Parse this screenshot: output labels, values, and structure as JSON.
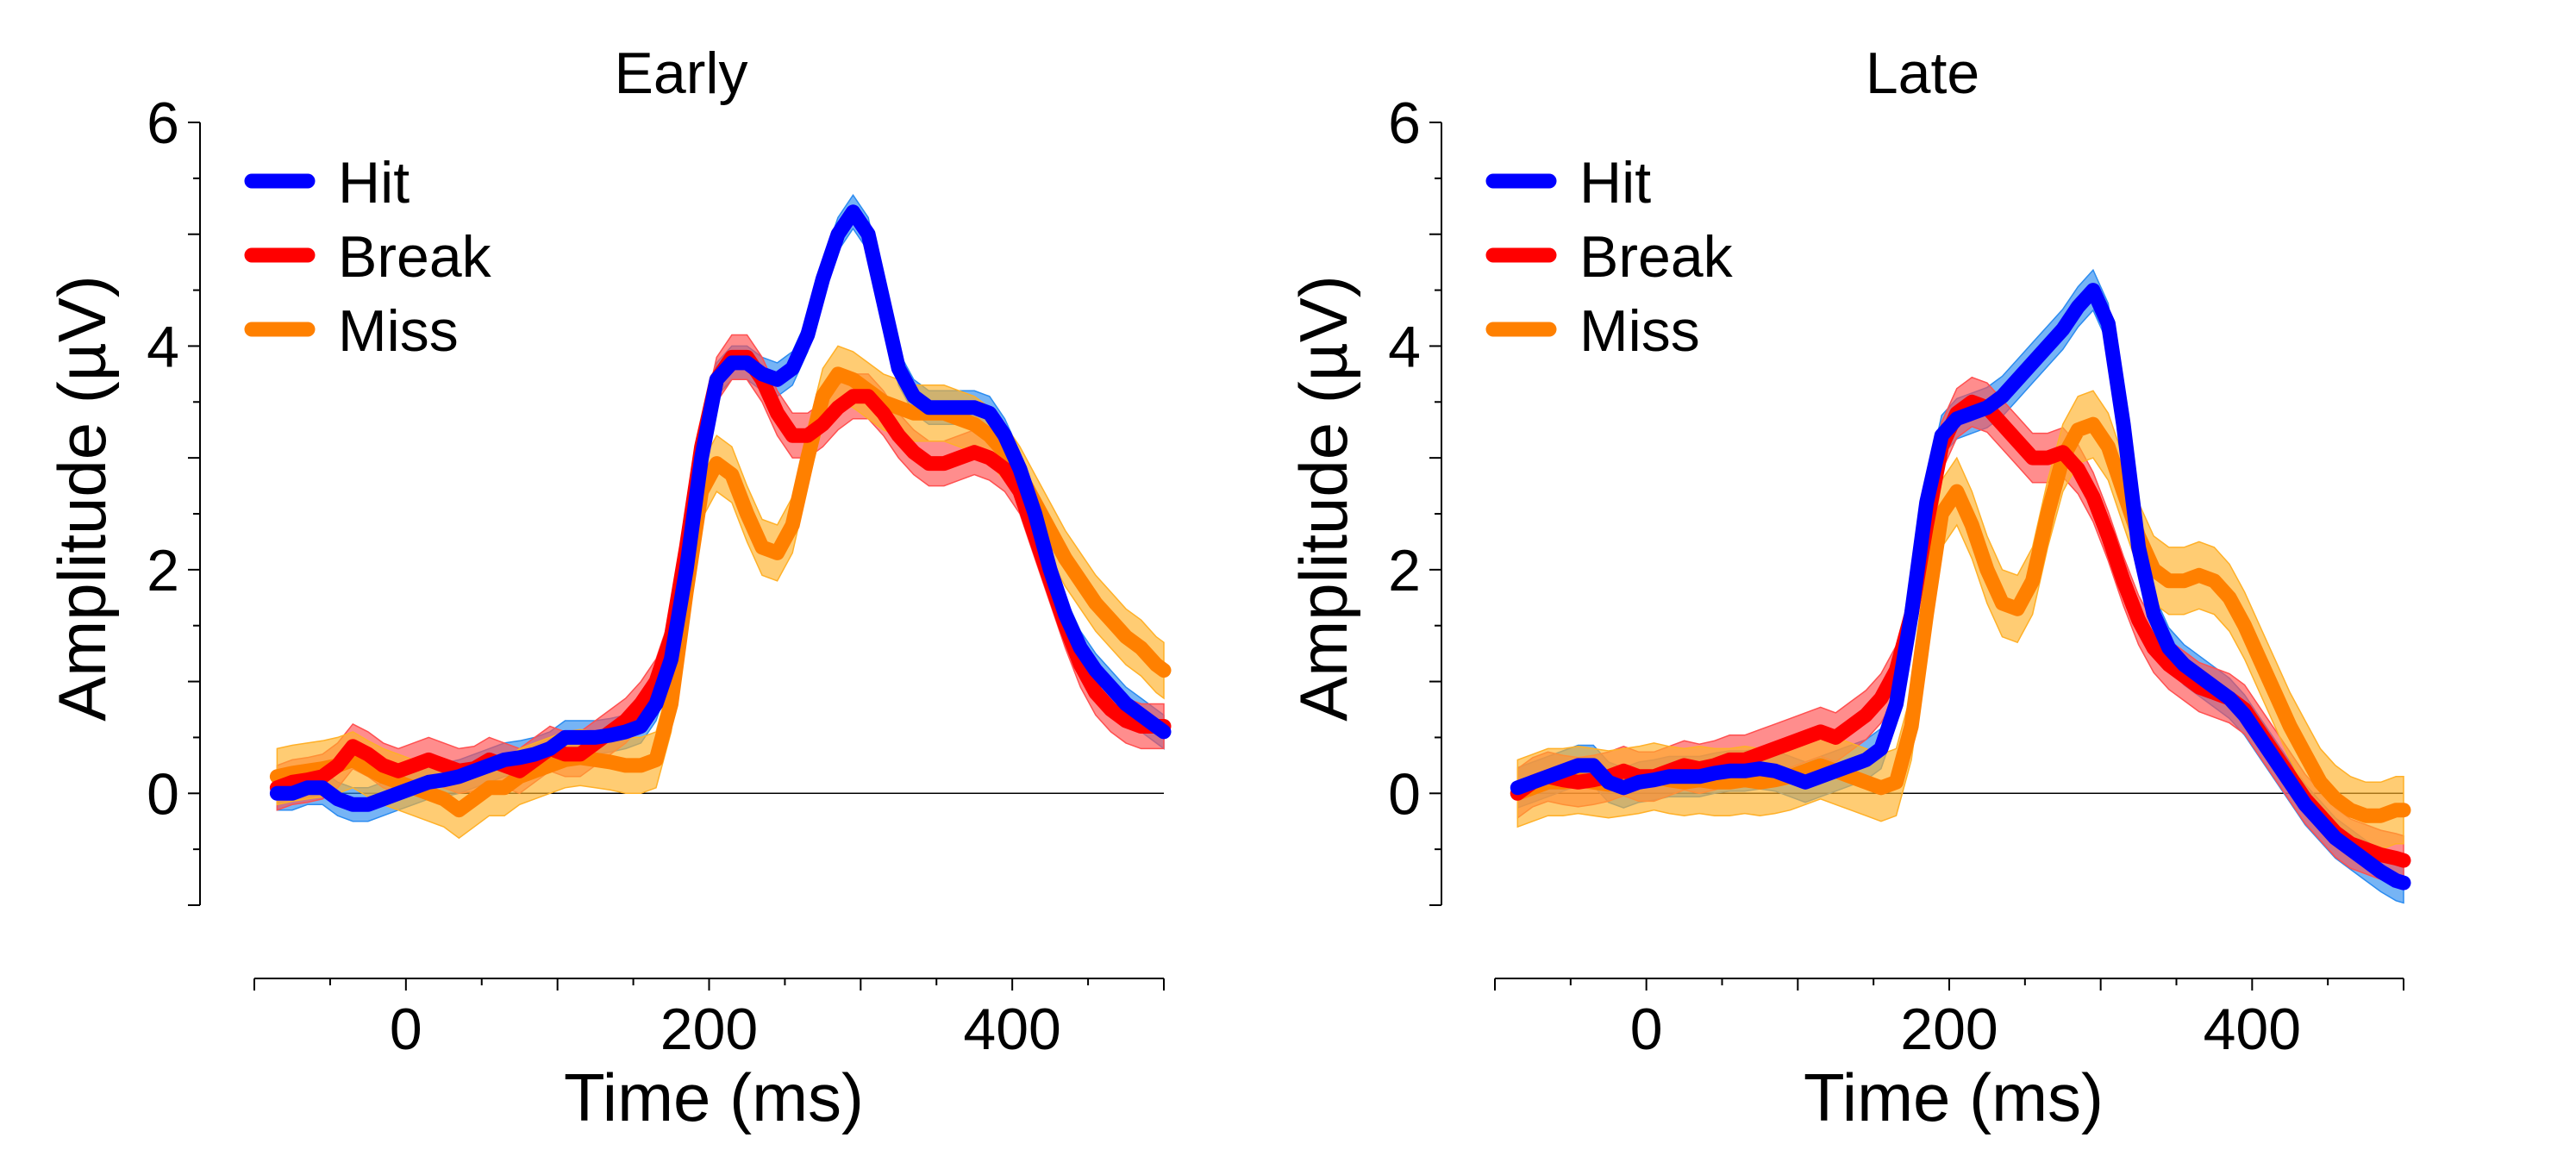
{
  "chart_data": [
    {
      "type": "line",
      "title": "Early",
      "xlabel": "Time (ms)",
      "ylabel": "Amplitude (µV)",
      "xlim": [
        -100,
        500
      ],
      "ylim": [
        -1,
        6
      ],
      "xticks": [
        0,
        200,
        400
      ],
      "xtick_labels": [
        "0",
        "200",
        "400"
      ],
      "yticks": [
        0,
        2,
        4,
        6
      ],
      "ytick_labels": [
        "0",
        "2",
        "4",
        "6"
      ],
      "zero_line": true,
      "shaded_error_bands": true,
      "legend": "top-left",
      "series": [
        {
          "name": "Hit",
          "color": "#0000ff",
          "band_color": "#2c8cf0",
          "x": [
            -85,
            -75,
            -65,
            -55,
            -45,
            -35,
            -25,
            -15,
            -5,
            5,
            15,
            25,
            35,
            45,
            55,
            65,
            75,
            85,
            95,
            105,
            115,
            125,
            135,
            145,
            155,
            165,
            175,
            185,
            195,
            205,
            215,
            225,
            235,
            245,
            255,
            265,
            275,
            285,
            295,
            305,
            315,
            325,
            335,
            345,
            355,
            365,
            375,
            385,
            395,
            405,
            415,
            425,
            435,
            445,
            455,
            465,
            475,
            485,
            495,
            500
          ],
          "y": [
            0.0,
            0.0,
            0.05,
            0.05,
            -0.05,
            -0.1,
            -0.1,
            -0.05,
            0.0,
            0.05,
            0.1,
            0.12,
            0.15,
            0.2,
            0.25,
            0.3,
            0.32,
            0.35,
            0.4,
            0.5,
            0.5,
            0.5,
            0.52,
            0.55,
            0.6,
            0.8,
            1.2,
            2.0,
            3.0,
            3.7,
            3.85,
            3.85,
            3.75,
            3.7,
            3.8,
            4.1,
            4.6,
            5.0,
            5.2,
            5.0,
            4.4,
            3.8,
            3.55,
            3.45,
            3.45,
            3.45,
            3.45,
            3.4,
            3.2,
            2.9,
            2.5,
            2.0,
            1.6,
            1.3,
            1.1,
            0.95,
            0.8,
            0.7,
            0.6,
            0.55
          ],
          "error": 0.15
        },
        {
          "name": "Break",
          "color": "#ff0000",
          "band_color": "#ff5050",
          "x": [
            -85,
            -75,
            -65,
            -55,
            -45,
            -35,
            -25,
            -15,
            -5,
            5,
            15,
            25,
            35,
            45,
            55,
            65,
            75,
            85,
            95,
            105,
            115,
            125,
            135,
            145,
            155,
            165,
            175,
            185,
            195,
            205,
            215,
            225,
            235,
            245,
            255,
            265,
            275,
            285,
            295,
            305,
            315,
            325,
            335,
            345,
            355,
            365,
            375,
            385,
            395,
            405,
            415,
            425,
            435,
            445,
            455,
            465,
            475,
            485,
            495,
            500
          ],
          "y": [
            0.05,
            0.1,
            0.12,
            0.15,
            0.25,
            0.42,
            0.35,
            0.25,
            0.2,
            0.25,
            0.3,
            0.25,
            0.2,
            0.22,
            0.3,
            0.25,
            0.2,
            0.3,
            0.4,
            0.35,
            0.35,
            0.45,
            0.55,
            0.65,
            0.8,
            1.0,
            1.4,
            2.2,
            3.1,
            3.7,
            3.9,
            3.9,
            3.7,
            3.4,
            3.2,
            3.2,
            3.3,
            3.45,
            3.55,
            3.55,
            3.4,
            3.2,
            3.05,
            2.95,
            2.95,
            3.0,
            3.05,
            3.0,
            2.9,
            2.7,
            2.3,
            1.9,
            1.5,
            1.15,
            0.9,
            0.75,
            0.65,
            0.6,
            0.6,
            0.6
          ],
          "error": 0.2
        },
        {
          "name": "Miss",
          "color": "#ff8000",
          "band_color": "#ffb028",
          "x": [
            -85,
            -75,
            -65,
            -55,
            -45,
            -35,
            -25,
            -15,
            -5,
            5,
            15,
            25,
            35,
            45,
            55,
            65,
            75,
            85,
            95,
            105,
            115,
            125,
            135,
            145,
            155,
            165,
            175,
            185,
            195,
            205,
            215,
            225,
            235,
            245,
            255,
            265,
            275,
            285,
            295,
            305,
            315,
            325,
            335,
            345,
            355,
            365,
            375,
            385,
            395,
            405,
            415,
            425,
            435,
            445,
            455,
            465,
            475,
            485,
            495,
            500
          ],
          "y": [
            0.15,
            0.18,
            0.2,
            0.22,
            0.25,
            0.3,
            0.22,
            0.15,
            0.1,
            0.05,
            0.0,
            -0.05,
            -0.15,
            -0.05,
            0.05,
            0.05,
            0.15,
            0.2,
            0.25,
            0.3,
            0.32,
            0.3,
            0.28,
            0.25,
            0.25,
            0.3,
            0.8,
            1.8,
            2.7,
            2.95,
            2.85,
            2.5,
            2.2,
            2.15,
            2.4,
            3.0,
            3.55,
            3.75,
            3.7,
            3.6,
            3.5,
            3.45,
            3.4,
            3.4,
            3.4,
            3.35,
            3.3,
            3.2,
            3.05,
            2.85,
            2.6,
            2.35,
            2.1,
            1.9,
            1.7,
            1.55,
            1.4,
            1.3,
            1.15,
            1.1
          ],
          "error": 0.25
        }
      ]
    },
    {
      "type": "line",
      "title": "Late",
      "xlabel": "Time (ms)",
      "ylabel": "Amplitude (µV)",
      "xlim": [
        -100,
        500
      ],
      "ylim": [
        -1,
        6
      ],
      "xticks": [
        0,
        200,
        400
      ],
      "xtick_labels": [
        "0",
        "200",
        "400"
      ],
      "yticks": [
        0,
        2,
        4,
        6
      ],
      "ytick_labels": [
        "0",
        "2",
        "4",
        "6"
      ],
      "zero_line": true,
      "shaded_error_bands": true,
      "legend": "top-left",
      "series": [
        {
          "name": "Hit",
          "color": "#0000ff",
          "band_color": "#2c8cf0",
          "x": [
            -85,
            -75,
            -65,
            -55,
            -45,
            -35,
            -25,
            -15,
            -5,
            5,
            15,
            25,
            35,
            45,
            55,
            65,
            75,
            85,
            95,
            105,
            115,
            125,
            135,
            145,
            155,
            165,
            175,
            185,
            195,
            205,
            215,
            225,
            235,
            245,
            255,
            265,
            275,
            285,
            295,
            305,
            315,
            325,
            335,
            345,
            355,
            365,
            375,
            385,
            395,
            405,
            415,
            425,
            435,
            445,
            455,
            465,
            475,
            485,
            495,
            500
          ],
          "y": [
            0.05,
            0.1,
            0.15,
            0.2,
            0.25,
            0.25,
            0.1,
            0.05,
            0.1,
            0.12,
            0.15,
            0.15,
            0.15,
            0.18,
            0.2,
            0.2,
            0.22,
            0.2,
            0.15,
            0.1,
            0.15,
            0.2,
            0.25,
            0.3,
            0.4,
            0.8,
            1.6,
            2.6,
            3.2,
            3.35,
            3.4,
            3.45,
            3.55,
            3.7,
            3.85,
            4.0,
            4.15,
            4.35,
            4.5,
            4.2,
            3.3,
            2.2,
            1.6,
            1.3,
            1.15,
            1.05,
            0.95,
            0.85,
            0.7,
            0.5,
            0.3,
            0.1,
            -0.1,
            -0.25,
            -0.4,
            -0.5,
            -0.6,
            -0.7,
            -0.78,
            -0.8
          ],
          "error": 0.18
        },
        {
          "name": "Break",
          "color": "#ff0000",
          "band_color": "#ff5050",
          "x": [
            -85,
            -75,
            -65,
            -55,
            -45,
            -35,
            -25,
            -15,
            -5,
            5,
            15,
            25,
            35,
            45,
            55,
            65,
            75,
            85,
            95,
            105,
            115,
            125,
            135,
            145,
            155,
            165,
            175,
            185,
            195,
            205,
            215,
            225,
            235,
            245,
            255,
            265,
            275,
            285,
            295,
            305,
            315,
            325,
            335,
            345,
            355,
            365,
            375,
            385,
            395,
            405,
            415,
            425,
            435,
            445,
            455,
            465,
            475,
            485,
            495,
            500
          ],
          "y": [
            0.0,
            0.1,
            0.15,
            0.12,
            0.1,
            0.12,
            0.15,
            0.2,
            0.15,
            0.15,
            0.2,
            0.25,
            0.22,
            0.25,
            0.3,
            0.3,
            0.35,
            0.4,
            0.45,
            0.5,
            0.55,
            0.5,
            0.6,
            0.7,
            0.85,
            1.1,
            1.6,
            2.4,
            3.1,
            3.4,
            3.5,
            3.45,
            3.3,
            3.15,
            3.0,
            3.0,
            3.05,
            2.9,
            2.65,
            2.3,
            1.9,
            1.55,
            1.3,
            1.15,
            1.05,
            0.95,
            0.9,
            0.85,
            0.75,
            0.55,
            0.35,
            0.15,
            -0.05,
            -0.2,
            -0.35,
            -0.45,
            -0.5,
            -0.55,
            -0.58,
            -0.6
          ],
          "error": 0.22
        },
        {
          "name": "Miss",
          "color": "#ff8000",
          "band_color": "#ffb028",
          "x": [
            -85,
            -75,
            -65,
            -55,
            -45,
            -35,
            -25,
            -15,
            -5,
            5,
            15,
            25,
            35,
            45,
            55,
            65,
            75,
            85,
            95,
            105,
            115,
            125,
            135,
            145,
            155,
            165,
            175,
            185,
            195,
            205,
            215,
            225,
            235,
            245,
            255,
            265,
            275,
            285,
            295,
            305,
            315,
            325,
            335,
            345,
            355,
            365,
            375,
            385,
            395,
            405,
            415,
            425,
            435,
            445,
            455,
            465,
            475,
            485,
            495,
            500
          ],
          "y": [
            0.0,
            0.05,
            0.1,
            0.1,
            0.12,
            0.1,
            0.08,
            0.1,
            0.12,
            0.15,
            0.12,
            0.1,
            0.12,
            0.1,
            0.1,
            0.12,
            0.1,
            0.12,
            0.15,
            0.2,
            0.25,
            0.2,
            0.15,
            0.1,
            0.05,
            0.1,
            0.6,
            1.6,
            2.5,
            2.7,
            2.4,
            2.0,
            1.7,
            1.65,
            1.9,
            2.5,
            3.0,
            3.25,
            3.3,
            3.1,
            2.7,
            2.3,
            2.0,
            1.9,
            1.9,
            1.95,
            1.9,
            1.75,
            1.5,
            1.2,
            0.9,
            0.6,
            0.35,
            0.1,
            -0.05,
            -0.15,
            -0.2,
            -0.2,
            -0.15,
            -0.15
          ],
          "error": 0.3
        }
      ]
    }
  ]
}
